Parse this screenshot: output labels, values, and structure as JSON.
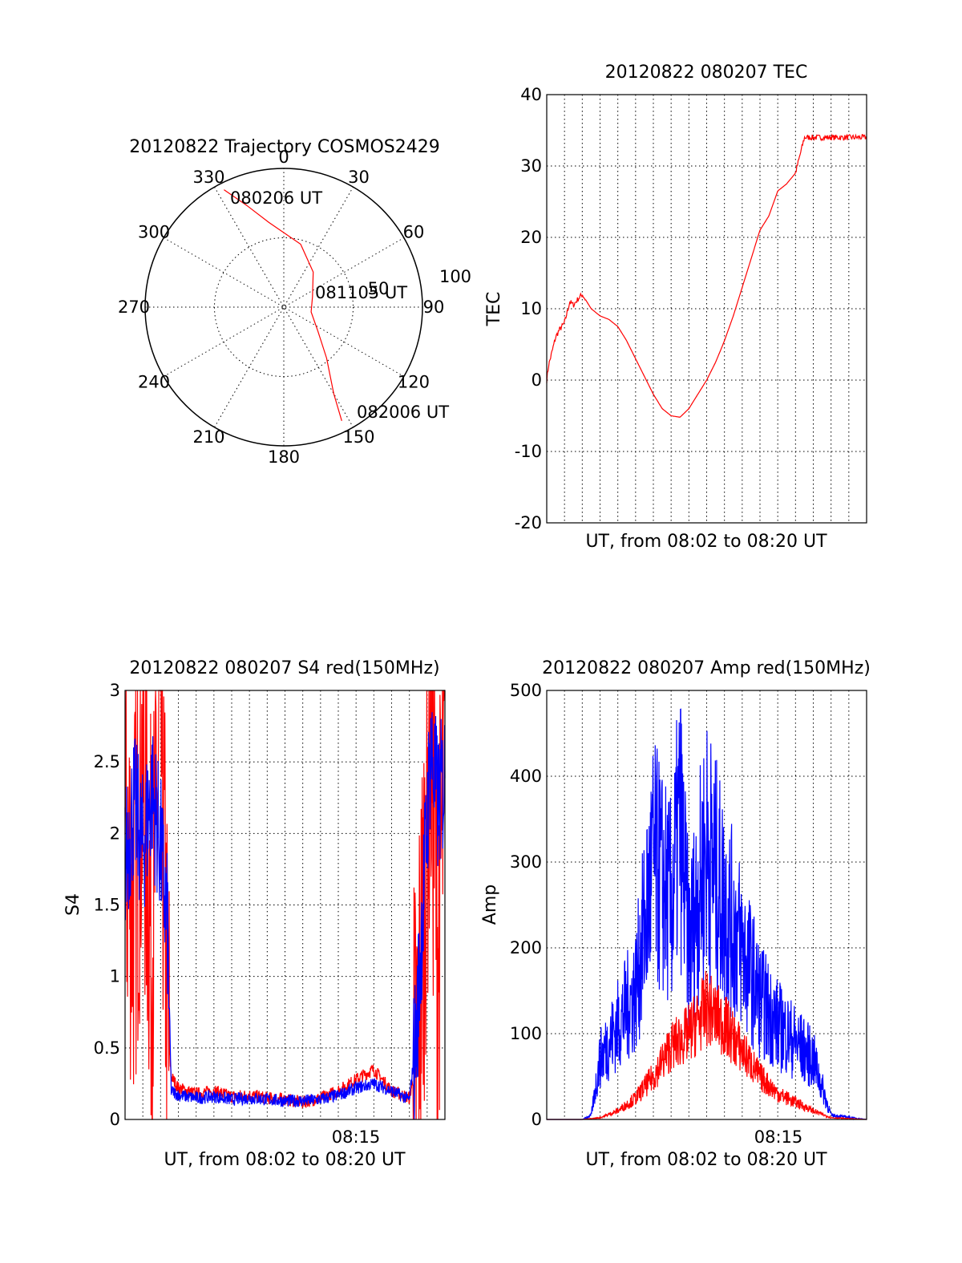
{
  "colors": {
    "red": "#ff0000",
    "blue": "#0000ff",
    "axis": "#000000"
  },
  "chart_data": [
    {
      "type": "polar",
      "title": "20120822 Trajectory COSMOS2429",
      "angle_labels": [
        "0",
        "30",
        "60",
        "90",
        "120",
        "150",
        "180",
        "210",
        "240",
        "270",
        "300",
        "330"
      ],
      "radius_labels": [
        "50",
        "100"
      ],
      "rmax": 100,
      "start_label": "080206 UT",
      "mid_label": "081105 UT",
      "end_label": "082006 UT",
      "series": [
        {
          "points": [
            [
              333,
              95
            ],
            [
              340,
              78
            ],
            [
              350,
              62
            ],
            [
              15,
              47
            ],
            [
              40,
              33
            ],
            [
              70,
              22
            ],
            [
              100,
              20
            ],
            [
              125,
              30
            ],
            [
              140,
              48
            ],
            [
              150,
              72
            ],
            [
              153,
              92
            ]
          ]
        }
      ]
    },
    {
      "type": "line",
      "title": "20120822 080207 TEC",
      "xlabel": "UT, from 08:02 to 08:20 UT",
      "ylabel": "TEC",
      "xlim": [
        0,
        18
      ],
      "ylim": [
        -20,
        40
      ],
      "yticks": [
        "-20",
        "-10",
        "0",
        "10",
        "20",
        "30",
        "40"
      ],
      "series": [
        {
          "x": [
            0,
            0.1,
            0.3,
            0.5,
            0.7,
            1.0,
            1.3,
            1.5,
            1.8,
            2.0,
            2.5,
            3,
            3.5,
            4,
            4.5,
            5,
            5.5,
            6,
            6.5,
            7,
            7.5,
            8,
            8.5,
            9,
            9.5,
            10,
            10.5,
            11,
            11.5,
            12,
            12.5,
            13,
            13.5,
            14,
            14.5,
            15,
            15.5,
            16,
            16.5,
            17,
            17.5,
            18
          ],
          "y": [
            0,
            2,
            4,
            6,
            7,
            8,
            11,
            10.5,
            11.5,
            12,
            10,
            9,
            8.5,
            7.5,
            5.5,
            3,
            0.5,
            -2,
            -4,
            -5,
            -5.2,
            -4,
            -2,
            0,
            2.5,
            5.5,
            9,
            13,
            17,
            21,
            23,
            26.5,
            27.5,
            29,
            34,
            34,
            34,
            34,
            34,
            34,
            34,
            34
          ]
        }
      ]
    },
    {
      "type": "line",
      "title": "20120822 080207 S4 red(150MHz)",
      "xlabel": "UT, from 08:02 to 08:20 UT",
      "ylabel": "S4",
      "xtick_label": "08:15",
      "xlim": [
        0,
        18
      ],
      "ylim": [
        0,
        3
      ],
      "yticks": [
        "0",
        "0.5",
        "1",
        "1.5",
        "2",
        "2.5",
        "3"
      ],
      "series": [
        {
          "x": [
            0,
            0.5,
            1,
            1.5,
            2,
            2.4,
            2.6,
            3,
            4,
            5,
            6,
            7,
            8,
            9,
            10,
            11,
            12,
            13,
            14,
            15,
            16,
            16.4,
            16.8,
            17.2,
            17.6,
            18
          ],
          "y": [
            2,
            1.5,
            2.5,
            1.2,
            2.8,
            0.6,
            0.3,
            0.22,
            0.18,
            0.2,
            0.16,
            0.17,
            0.15,
            0.14,
            0.12,
            0.15,
            0.2,
            0.28,
            0.35,
            0.2,
            0.15,
            0.4,
            1.5,
            2.8,
            1.2,
            2.5
          ]
        },
        {
          "x": [
            0,
            0.5,
            1,
            1.5,
            2,
            2.4,
            2.6,
            3,
            4,
            5,
            6,
            7,
            8,
            9,
            10,
            11,
            12,
            13,
            14,
            15,
            16,
            16.4,
            16.8,
            17.2,
            17.6,
            18
          ],
          "y": [
            1.8,
            2.2,
            1.9,
            2.3,
            1.9,
            1.3,
            0.2,
            0.17,
            0.15,
            0.16,
            0.14,
            0.15,
            0.14,
            0.13,
            0.13,
            0.14,
            0.17,
            0.22,
            0.25,
            0.2,
            0.14,
            0.6,
            1.6,
            2.6,
            2.2,
            2.4
          ]
        }
      ]
    },
    {
      "type": "line",
      "title": "20120822 080207 Amp red(150MHz)",
      "xlabel": "UT, from 08:02 to 08:20 UT",
      "ylabel": "Amp",
      "xtick_label": "08:15",
      "xlim": [
        0,
        18
      ],
      "ylim": [
        0,
        500
      ],
      "yticks": [
        "0",
        "100",
        "200",
        "300",
        "400",
        "500"
      ],
      "series": [
        {
          "x": [
            0,
            2,
            3,
            4,
            5,
            6,
            7,
            8,
            9,
            10,
            11,
            12,
            13,
            14,
            15,
            16,
            18
          ],
          "y": [
            0,
            0,
            2,
            10,
            25,
            50,
            85,
            100,
            130,
            110,
            80,
            50,
            30,
            20,
            10,
            2,
            0
          ]
        },
        {
          "x": [
            0,
            2,
            2.5,
            3,
            4,
            5,
            6,
            7,
            7.5,
            8,
            9,
            10,
            11,
            12,
            13,
            14,
            15,
            16,
            18
          ],
          "y": [
            0,
            0,
            5,
            70,
            110,
            150,
            300,
            250,
            350,
            200,
            320,
            250,
            200,
            140,
            110,
            90,
            70,
            5,
            0
          ]
        }
      ]
    }
  ]
}
